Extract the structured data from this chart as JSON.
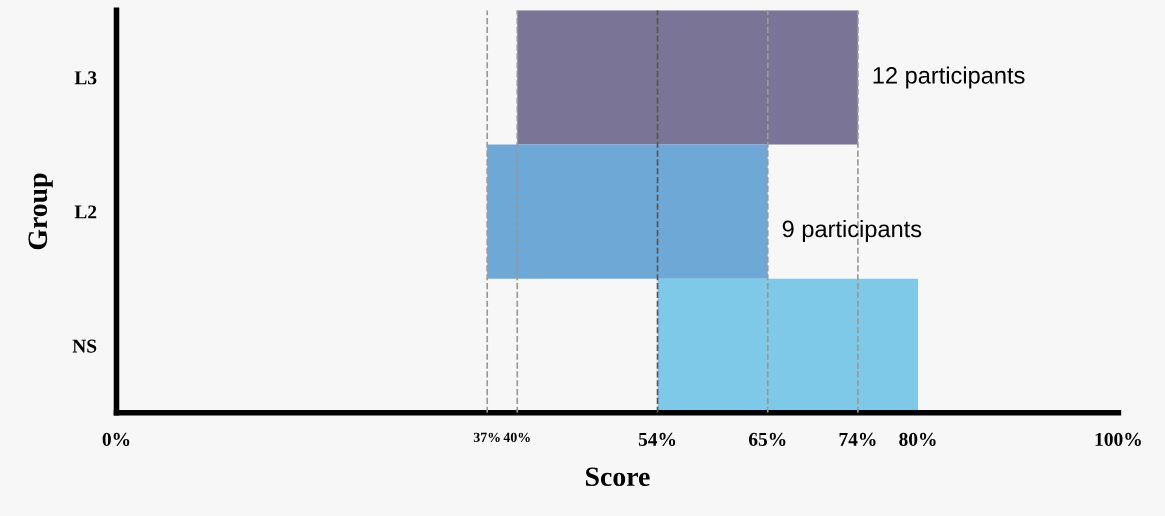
{
  "chart_data": {
    "type": "bar",
    "orientation": "horizontal",
    "categories": [
      "L3",
      "L2",
      "NS"
    ],
    "base": [
      40,
      37,
      54
    ],
    "values": [
      34,
      28,
      26
    ],
    "colors": [
      "#7a7497",
      "#6ea8d6",
      "#7ec8e8"
    ],
    "xlabel": "Score",
    "ylabel": "Group",
    "xlim": [
      0,
      100
    ],
    "xticks": [
      {
        "value": 0,
        "label": "0%"
      },
      {
        "value": 37,
        "label": "37%"
      },
      {
        "value": 40,
        "label": "40%"
      },
      {
        "value": 54,
        "label": "54%"
      },
      {
        "value": 65,
        "label": "65%"
      },
      {
        "value": 74,
        "label": "74%"
      },
      {
        "value": 80,
        "label": "80%"
      },
      {
        "value": 100,
        "label": "100%"
      }
    ],
    "ref_lines": [
      {
        "axis": "x",
        "value": 37,
        "color": "#999999",
        "line_style": "dashed"
      },
      {
        "axis": "x",
        "value": 40,
        "color": "#999999",
        "line_style": "dashed"
      },
      {
        "axis": "x",
        "value": 54,
        "color": "#555555",
        "line_style": "dashed"
      },
      {
        "axis": "x",
        "value": 65,
        "color": "#999999",
        "line_style": "dashed"
      },
      {
        "axis": "x",
        "value": 74,
        "color": "#999999",
        "line_style": "dashed"
      }
    ],
    "annotations": [
      {
        "text": "12 participants",
        "x": 74,
        "y": "L3"
      },
      {
        "text": "9 participants",
        "x": 65,
        "y": "L2"
      }
    ],
    "grid": false
  }
}
